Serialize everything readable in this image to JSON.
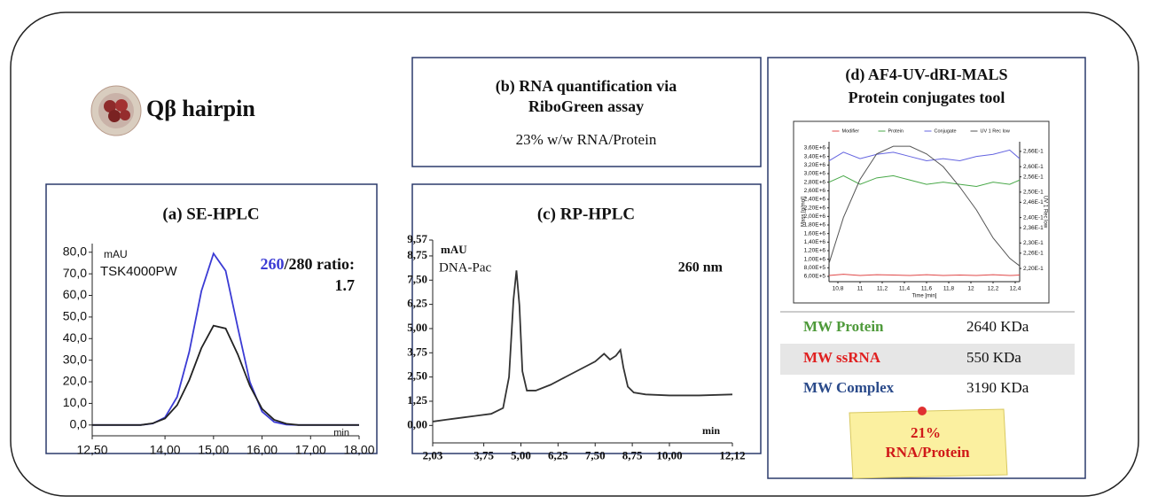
{
  "header": {
    "title": "Qβ hairpin"
  },
  "panel_b": {
    "title_lines": [
      "(b) RNA quantification via",
      "RiboGreen assay"
    ],
    "text": "23% w/w RNA/Protein"
  },
  "panel_d": {
    "title_lines": [
      "(d) AF4-UV-dRI-MALS",
      "Protein conjugates tool"
    ]
  },
  "table": {
    "rows": [
      [
        "MW Protein",
        "2640 KDa"
      ],
      [
        "MW ssRNA",
        "550 KDa"
      ],
      [
        "MW Complex",
        "3190 KDa"
      ]
    ]
  },
  "note": {
    "lines": [
      "21%",
      "RNA/Protein"
    ]
  },
  "chart_data": [
    {
      "type": "line",
      "title": "(a) SE-HPLC",
      "annotations": [
        "mAU",
        "TSK4000PW",
        "min"
      ],
      "ratio_label": {
        "highlight": "260",
        "rest": "/280 ratio:",
        "value": "1.7"
      },
      "x": [
        12.5,
        12.75,
        13,
        13.25,
        13.5,
        13.75,
        14,
        14.25,
        14.5,
        14.75,
        15,
        15.25,
        15.5,
        15.75,
        16,
        16.25,
        16.5,
        16.75,
        17,
        17.25,
        17.5,
        17.75,
        18
      ],
      "series": [
        {
          "color": "#3b3bd4",
          "values": [
            0,
            0,
            0,
            0,
            0,
            0.7,
            3.5,
            13.0,
            33.9,
            62.0,
            79.4,
            71.4,
            45.1,
            19.9,
            6.2,
            1.4,
            0.2,
            0,
            0,
            0,
            0,
            0,
            0
          ]
        },
        {
          "color": "#222222",
          "values": [
            0,
            0,
            0,
            0,
            0,
            0.8,
            3.0,
            9.2,
            20.8,
            35.6,
            46.0,
            44.7,
            32.7,
            18.1,
            7.5,
            2.4,
            0.6,
            0,
            0,
            0,
            0,
            0,
            0
          ]
        }
      ],
      "xlim": [
        12.5,
        18
      ],
      "ylim": [
        -5,
        84
      ],
      "xticks": [
        {
          "value": 12.5,
          "label": "12,50"
        },
        {
          "value": 14,
          "label": "14,00"
        },
        {
          "value": 15,
          "label": "15,00"
        },
        {
          "value": 16,
          "label": "16,00"
        },
        {
          "value": 17,
          "label": "17,00"
        },
        {
          "value": 18,
          "label": "18,00"
        }
      ],
      "yticks": [
        {
          "value": 0,
          "label": "0,0"
        },
        {
          "value": 10,
          "label": "10,0"
        },
        {
          "value": 20,
          "label": "20,0"
        },
        {
          "value": 30,
          "label": "30,0"
        },
        {
          "value": 40,
          "label": "40,0"
        },
        {
          "value": 50,
          "label": "50,0"
        },
        {
          "value": 60,
          "label": "60,0"
        },
        {
          "value": 70,
          "label": "70,0"
        },
        {
          "value": 80,
          "label": "80,0"
        }
      ],
      "grid": false
    },
    {
      "type": "line",
      "title": "(c) RP-HPLC",
      "annotations": [
        "mAU",
        "DNA-Pac",
        "260 nm",
        "min"
      ],
      "x": [
        2.03,
        2.5,
        3,
        3.5,
        4,
        4.4,
        4.6,
        4.75,
        4.85,
        4.95,
        5.05,
        5.2,
        5.5,
        6,
        6.5,
        7,
        7.5,
        7.8,
        8,
        8.2,
        8.35,
        8.45,
        8.6,
        8.8,
        9.2,
        10,
        11,
        12.12
      ],
      "series": [
        {
          "color": "#333333",
          "values": [
            0.2,
            0.3,
            0.4,
            0.5,
            0.6,
            0.9,
            2.5,
            6.5,
            8.0,
            6.2,
            2.8,
            1.8,
            1.8,
            2.1,
            2.5,
            2.9,
            3.3,
            3.7,
            3.4,
            3.6,
            3.9,
            3.0,
            2.0,
            1.7,
            1.6,
            1.55,
            1.55,
            1.6
          ]
        }
      ],
      "xlim": [
        2.03,
        12.12
      ],
      "ylim": [
        -0.9,
        9.57
      ],
      "xticks": [
        {
          "value": 2.03,
          "label": "2,03"
        },
        {
          "value": 3.75,
          "label": "3,75"
        },
        {
          "value": 5,
          "label": "5,00"
        },
        {
          "value": 6.25,
          "label": "6,25"
        },
        {
          "value": 7.5,
          "label": "7,50"
        },
        {
          "value": 8.75,
          "label": "8,75"
        },
        {
          "value": 10,
          "label": "10,00"
        },
        {
          "value": 12.12,
          "label": "12,12"
        }
      ],
      "yticks": [
        {
          "value": 0,
          "label": "0,00"
        },
        {
          "value": 1.25,
          "label": "1,25"
        },
        {
          "value": 2.5,
          "label": "2,50"
        },
        {
          "value": 3.75,
          "label": "3,75"
        },
        {
          "value": 5,
          "label": "5,00"
        },
        {
          "value": 6.25,
          "label": "6,25"
        },
        {
          "value": 7.5,
          "label": "7,50"
        },
        {
          "value": 8.75,
          "label": "8,75"
        },
        {
          "value": 9.57,
          "label": "9,57"
        }
      ],
      "grid": false
    },
    {
      "type": "line",
      "x_label": "Time [min]",
      "y_label": "Mass [g/mol]",
      "y2_label": "UV 1 Rec low",
      "x": [
        10.72,
        10.85,
        11,
        11.15,
        11.3,
        11.45,
        11.6,
        11.75,
        11.9,
        12.05,
        12.2,
        12.35,
        12.44
      ],
      "series": [
        {
          "name": "Modifier",
          "color": "#e04848",
          "values": [
            620000,
            650000,
            620000,
            640000,
            630000,
            620000,
            640000,
            620000,
            630000,
            620000,
            640000,
            620000,
            630000
          ]
        },
        {
          "name": "Protein",
          "color": "#48a848",
          "values": [
            2800000,
            2950000,
            2750000,
            2900000,
            2950000,
            2850000,
            2750000,
            2800000,
            2750000,
            2700000,
            2800000,
            2750000,
            2850000
          ]
        },
        {
          "name": "Conjugate",
          "color": "#6464e0",
          "values": [
            3300000,
            3500000,
            3350000,
            3450000,
            3500000,
            3400000,
            3300000,
            3350000,
            3300000,
            3400000,
            3450000,
            3550000,
            3350000
          ]
        },
        {
          "name": "UV 1 Rec low",
          "color": "#555555",
          "axis": "y2",
          "values": [
            0.222,
            0.24,
            0.255,
            0.265,
            0.268,
            0.268,
            0.265,
            0.26,
            0.252,
            0.243,
            0.232,
            0.224,
            0.221
          ]
        }
      ],
      "xlim": [
        10.72,
        12.44
      ],
      "ylim": [
        476000,
        3745000
      ],
      "y2lim": [
        0.2148,
        0.2698
      ],
      "xticks": [
        {
          "value": 10.8,
          "label": "10,8"
        },
        11,
        {
          "value": 11.2,
          "label": "11,2"
        },
        {
          "value": 11.4,
          "label": "11,4"
        },
        {
          "value": 11.6,
          "label": "11,6"
        },
        {
          "value": 11.8,
          "label": "11,8"
        },
        12,
        {
          "value": 12.2,
          "label": "12,2"
        },
        {
          "value": 12.4,
          "label": "12,4"
        }
      ],
      "yticks": [
        {
          "value": 600000,
          "label": "6,00E+5"
        },
        {
          "value": 800000,
          "label": "8,00E+5"
        },
        {
          "value": 1000000,
          "label": "1,00E+6"
        },
        {
          "value": 1200000,
          "label": "1,20E+6"
        },
        {
          "value": 1400000,
          "label": "1,40E+6"
        },
        {
          "value": 1600000,
          "label": "1,60E+6"
        },
        {
          "value": 1800000,
          "label": "1,80E+6"
        },
        {
          "value": 2000000,
          "label": "2,00E+6"
        },
        {
          "value": 2200000,
          "label": "2,20E+6"
        },
        {
          "value": 2400000,
          "label": "2,40E+6"
        },
        {
          "value": 2600000,
          "label": "2,60E+6"
        },
        {
          "value": 2800000,
          "label": "2,80E+6"
        },
        {
          "value": 3000000,
          "label": "3,00E+6"
        },
        {
          "value": 3200000,
          "label": "3,20E+6"
        },
        {
          "value": 3400000,
          "label": "3,40E+6"
        },
        {
          "value": 3600000,
          "label": "3,60E+6"
        }
      ],
      "y2ticks": [
        {
          "value": 0.22,
          "label": "2,20E-1"
        },
        {
          "value": 0.226,
          "label": "2,26E-1"
        },
        {
          "value": 0.23,
          "label": "2,30E-1"
        },
        {
          "value": 0.236,
          "label": "2,36E-1"
        },
        {
          "value": 0.24,
          "label": "2,40E-1"
        },
        {
          "value": 0.246,
          "label": "2,46E-1"
        },
        {
          "value": 0.25,
          "label": "2,50E-1"
        },
        {
          "value": 0.256,
          "label": "2,56E-1"
        },
        {
          "value": 0.26,
          "label": "2,60E-1"
        },
        {
          "value": 0.266,
          "label": "2,66E-1"
        }
      ],
      "legend": "top",
      "grid": false
    }
  ]
}
